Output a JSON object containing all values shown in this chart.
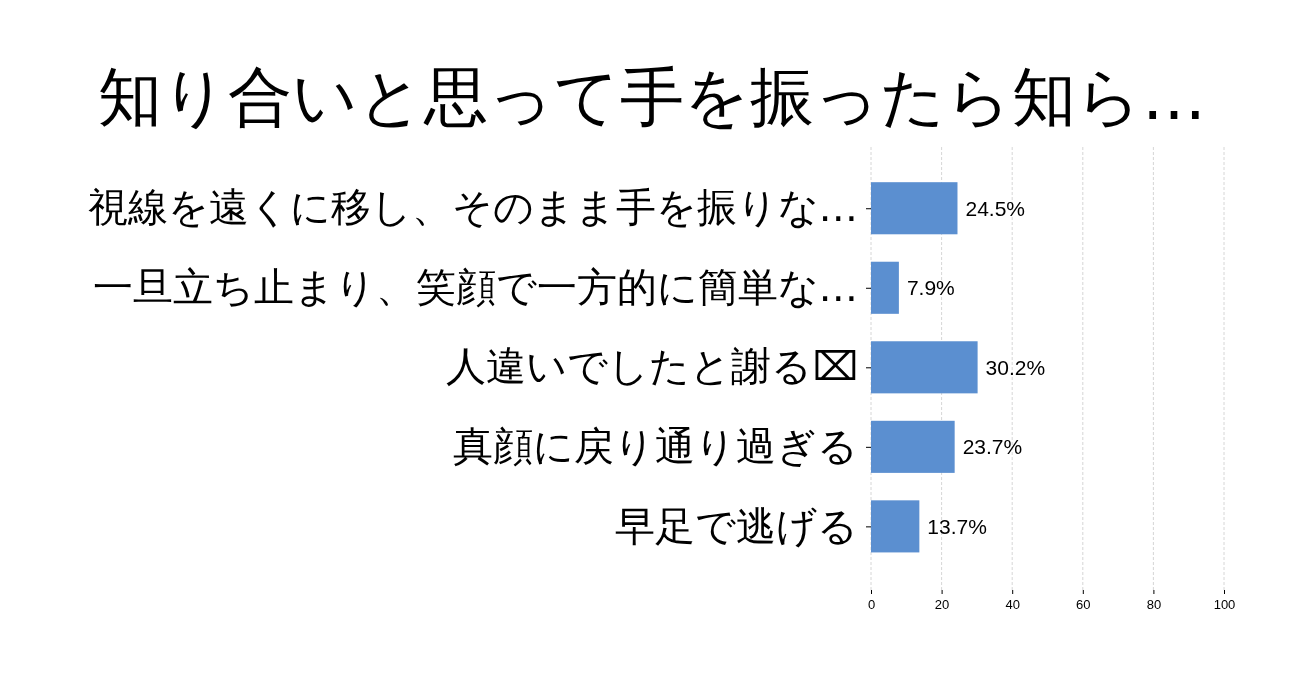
{
  "chart_data": {
    "type": "bar",
    "orientation": "horizontal",
    "title": "知り合いと思って手を振ったら知ら…",
    "categories": [
      "視線を遠くに移し、そのまま手を振りな…",
      "一旦立ち止まり、笑顔で一方的に簡単な…",
      "人違いでしたと謝る⌧",
      "真顔に戻り通り過ぎる",
      "早足で逃げる"
    ],
    "values": [
      24.5,
      7.9,
      30.2,
      23.7,
      13.7
    ],
    "value_labels": [
      "24.5%",
      "7.9%",
      "30.2%",
      "23.7%",
      "13.7%"
    ],
    "color": "#5b8fd0",
    "xlim": [
      0,
      100
    ],
    "xticks": [
      0,
      20,
      40,
      60,
      80,
      100
    ],
    "grid": "x"
  }
}
